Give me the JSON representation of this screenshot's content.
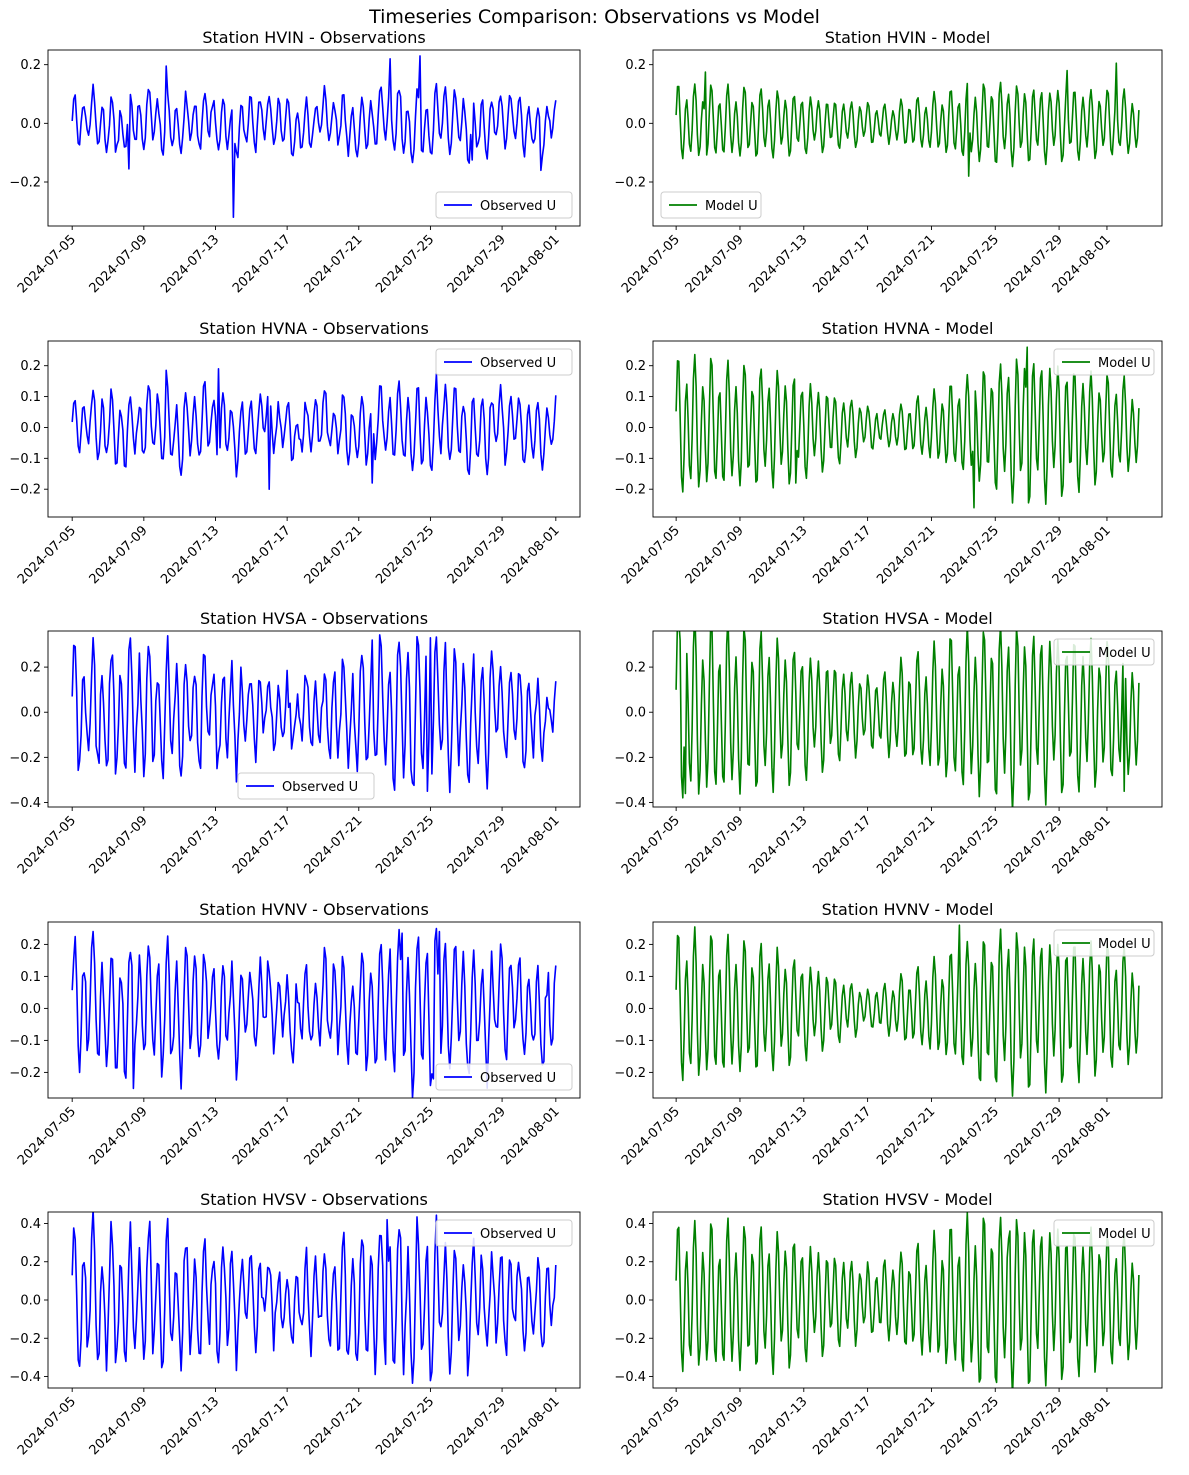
{
  "figure": {
    "suptitle": "Timeseries Comparison: Observations vs Model",
    "colors": {
      "observations": "#0000ff",
      "model": "#008000",
      "axis": "#000000"
    }
  },
  "chart_data": [
    {
      "type": "line",
      "title": "Station HVIN - Observations",
      "series": [
        {
          "name": "Observed U",
          "color": "#0000ff"
        }
      ],
      "legend": "lower-right",
      "x_range": [
        "2024-07-05",
        "2024-08-01"
      ],
      "data_x_range": [
        "2024-07-05",
        "2024-08-01"
      ],
      "x_ticks": [
        "2024-07-05",
        "2024-07-09",
        "2024-07-13",
        "2024-07-17",
        "2024-07-21",
        "2024-07-25",
        "2024-07-29",
        "2024-08-01"
      ],
      "ylim": [
        -0.35,
        0.25
      ],
      "y_ticks": [
        -0.2,
        0.0,
        0.2
      ],
      "amplitude": 0.08,
      "envelope": [
        [
          0,
          0.9
        ],
        [
          0.2,
          1.1
        ],
        [
          0.5,
          0.85
        ],
        [
          0.72,
          1.3
        ],
        [
          1,
          0.85
        ]
      ],
      "extremes": [
        [
          0.332,
          -0.32
        ],
        [
          0.117,
          -0.155
        ],
        [
          0.193,
          0.195
        ],
        [
          0.656,
          0.22
        ],
        [
          0.72,
          0.23
        ],
        [
          0.826,
          -0.125
        ],
        [
          0.97,
          -0.16
        ]
      ]
    },
    {
      "type": "line",
      "title": "Station HVIN - Model",
      "series": [
        {
          "name": "Model U",
          "color": "#008000"
        }
      ],
      "legend": "lower-left",
      "x_range": [
        "2024-07-05",
        "2024-08-01"
      ],
      "data_x_range": [
        "2024-07-05",
        "2024-08-03"
      ],
      "x_ticks": [
        "2024-07-05",
        "2024-07-09",
        "2024-07-13",
        "2024-07-17",
        "2024-07-21",
        "2024-07-25",
        "2024-07-29",
        "2024-08-01"
      ],
      "ylim": [
        -0.35,
        0.25
      ],
      "y_ticks": [
        -0.2,
        0.0,
        0.2
      ],
      "amplitude": 0.1,
      "envelope": [
        [
          0,
          1.1
        ],
        [
          0.2,
          1.0
        ],
        [
          0.45,
          0.55
        ],
        [
          0.68,
          1.2
        ],
        [
          1,
          0.9
        ]
      ],
      "extremes": [
        [
          0.062,
          0.175
        ],
        [
          0.633,
          -0.18
        ],
        [
          0.844,
          0.18
        ],
        [
          0.951,
          0.205
        ]
      ]
    },
    {
      "type": "line",
      "title": "Station HVNA - Observations",
      "series": [
        {
          "name": "Observed U",
          "color": "#0000ff"
        }
      ],
      "legend": "upper-right",
      "x_range": [
        "2024-07-05",
        "2024-08-01"
      ],
      "data_x_range": [
        "2024-07-05",
        "2024-08-01"
      ],
      "x_ticks": [
        "2024-07-05",
        "2024-07-09",
        "2024-07-13",
        "2024-07-17",
        "2024-07-21",
        "2024-07-25",
        "2024-07-29",
        "2024-08-01"
      ],
      "ylim": [
        -0.29,
        0.28
      ],
      "y_ticks": [
        -0.2,
        -0.1,
        0.0,
        0.1,
        0.2
      ],
      "amplitude": 0.1,
      "envelope": [
        [
          0,
          0.9
        ],
        [
          0.2,
          1.1
        ],
        [
          0.48,
          0.7
        ],
        [
          0.72,
          1.2
        ],
        [
          1,
          0.9
        ]
      ],
      "extremes": [
        [
          0.193,
          0.185
        ],
        [
          0.304,
          0.19
        ],
        [
          0.408,
          -0.2
        ],
        [
          0.62,
          -0.18
        ]
      ]
    },
    {
      "type": "line",
      "title": "Station HVNA - Model",
      "series": [
        {
          "name": "Model U",
          "color": "#008000"
        }
      ],
      "legend": "upper-right",
      "x_range": [
        "2024-07-05",
        "2024-08-01"
      ],
      "data_x_range": [
        "2024-07-05",
        "2024-08-03"
      ],
      "x_ticks": [
        "2024-07-05",
        "2024-07-09",
        "2024-07-13",
        "2024-07-17",
        "2024-07-21",
        "2024-07-25",
        "2024-07-29",
        "2024-08-01"
      ],
      "ylim": [
        -0.29,
        0.28
      ],
      "y_ticks": [
        -0.2,
        -0.1,
        0.0,
        0.1,
        0.2
      ],
      "amplitude": 0.15,
      "envelope": [
        [
          0,
          1.3
        ],
        [
          0.25,
          1.0
        ],
        [
          0.45,
          0.3
        ],
        [
          0.6,
          0.8
        ],
        [
          0.75,
          1.4
        ],
        [
          1,
          0.8
        ]
      ],
      "extremes": [
        [
          0.26,
          -0.18
        ],
        [
          0.645,
          -0.26
        ],
        [
          0.759,
          0.26
        ]
      ]
    },
    {
      "type": "line",
      "title": "Station HVSA - Observations",
      "series": [
        {
          "name": "Observed U",
          "color": "#0000ff"
        }
      ],
      "legend": "lower-center",
      "x_range": [
        "2024-07-05",
        "2024-08-01"
      ],
      "data_x_range": [
        "2024-07-05",
        "2024-08-01"
      ],
      "x_ticks": [
        "2024-07-05",
        "2024-07-09",
        "2024-07-13",
        "2024-07-17",
        "2024-07-21",
        "2024-07-25",
        "2024-07-29",
        "2024-08-01"
      ],
      "ylim": [
        -0.42,
        0.36
      ],
      "y_ticks": [
        -0.4,
        -0.2,
        0.0,
        0.2
      ],
      "amplitude": 0.25,
      "envelope": [
        [
          0,
          1.0
        ],
        [
          0.2,
          1.05
        ],
        [
          0.45,
          0.45
        ],
        [
          0.6,
          0.9
        ],
        [
          0.72,
          1.3
        ],
        [
          1,
          0.5
        ]
      ],
      "extremes": [
        [
          0.62,
          0.32
        ],
        [
          0.734,
          -0.35
        ],
        [
          0.74,
          0.33
        ]
      ]
    },
    {
      "type": "line",
      "title": "Station HVSA - Model",
      "series": [
        {
          "name": "Model U",
          "color": "#008000"
        }
      ],
      "legend": "upper-right",
      "x_range": [
        "2024-07-05",
        "2024-08-01"
      ],
      "data_x_range": [
        "2024-07-05",
        "2024-08-03"
      ],
      "x_ticks": [
        "2024-07-05",
        "2024-07-09",
        "2024-07-13",
        "2024-07-17",
        "2024-07-21",
        "2024-07-25",
        "2024-07-29",
        "2024-08-01"
      ],
      "ylim": [
        -0.42,
        0.36
      ],
      "y_ticks": [
        -0.4,
        -0.2,
        0.0,
        0.2
      ],
      "amplitude": 0.3,
      "envelope": [
        [
          0,
          1.2
        ],
        [
          0.2,
          1.0
        ],
        [
          0.42,
          0.45
        ],
        [
          0.6,
          0.95
        ],
        [
          0.72,
          1.15
        ],
        [
          1,
          0.8
        ]
      ],
      "extremes": [
        [
          0.019,
          -0.36
        ],
        [
          0.01,
          0.32
        ],
        [
          0.969,
          -0.35
        ]
      ]
    },
    {
      "type": "line",
      "title": "Station HVNV - Observations",
      "series": [
        {
          "name": "Observed U",
          "color": "#0000ff"
        }
      ],
      "legend": "lower-right",
      "x_range": [
        "2024-07-05",
        "2024-08-01"
      ],
      "data_x_range": [
        "2024-07-05",
        "2024-08-01"
      ],
      "x_ticks": [
        "2024-07-05",
        "2024-07-09",
        "2024-07-13",
        "2024-07-17",
        "2024-07-21",
        "2024-07-25",
        "2024-07-29",
        "2024-08-01"
      ],
      "ylim": [
        -0.28,
        0.27
      ],
      "y_ticks": [
        -0.2,
        -0.1,
        0.0,
        0.1,
        0.2
      ],
      "amplitude": 0.16,
      "envelope": [
        [
          0,
          1.0
        ],
        [
          0.2,
          1.1
        ],
        [
          0.45,
          0.6
        ],
        [
          0.6,
          1.0
        ],
        [
          0.72,
          1.3
        ],
        [
          1,
          0.7
        ]
      ],
      "extremes": [
        [
          0.128,
          -0.25
        ],
        [
          0.682,
          0.235
        ],
        [
          0.758,
          0.24
        ],
        [
          0.746,
          -0.22
        ]
      ]
    },
    {
      "type": "line",
      "title": "Station HVNV - Model",
      "series": [
        {
          "name": "Model U",
          "color": "#008000"
        }
      ],
      "legend": "upper-right",
      "x_range": [
        "2024-07-05",
        "2024-08-01"
      ],
      "data_x_range": [
        "2024-07-05",
        "2024-08-03"
      ],
      "x_ticks": [
        "2024-07-05",
        "2024-07-09",
        "2024-07-13",
        "2024-07-17",
        "2024-07-21",
        "2024-07-25",
        "2024-07-29",
        "2024-08-01"
      ],
      "ylim": [
        -0.28,
        0.27
      ],
      "y_ticks": [
        -0.2,
        -0.1,
        0.0,
        0.1,
        0.2
      ],
      "amplitude": 0.17,
      "envelope": [
        [
          0,
          1.2
        ],
        [
          0.2,
          1.0
        ],
        [
          0.42,
          0.3
        ],
        [
          0.6,
          0.9
        ],
        [
          0.72,
          1.3
        ],
        [
          1,
          0.9
        ]
      ],
      "extremes": [
        [
          0.612,
          0.26
        ],
        [
          0.658,
          -0.225
        ]
      ]
    },
    {
      "type": "line",
      "title": "Station HVSV - Observations",
      "series": [
        {
          "name": "Observed U",
          "color": "#0000ff"
        }
      ],
      "legend": "upper-right",
      "x_range": [
        "2024-07-05",
        "2024-08-01"
      ],
      "data_x_range": [
        "2024-07-05",
        "2024-08-01"
      ],
      "x_ticks": [
        "2024-07-05",
        "2024-07-09",
        "2024-07-13",
        "2024-07-17",
        "2024-07-21",
        "2024-07-25",
        "2024-07-29",
        "2024-08-01"
      ],
      "ylim": [
        -0.46,
        0.46
      ],
      "y_ticks": [
        -0.4,
        -0.2,
        0.0,
        0.2,
        0.4
      ],
      "amplitude": 0.3,
      "envelope": [
        [
          0,
          1.0
        ],
        [
          0.2,
          1.05
        ],
        [
          0.45,
          0.5
        ],
        [
          0.68,
          1.2
        ],
        [
          1,
          0.5
        ]
      ],
      "extremes": [
        [
          0.079,
          0.41
        ],
        [
          0.652,
          0.42
        ],
        [
          0.684,
          -0.39
        ]
      ]
    },
    {
      "type": "line",
      "title": "Station HVSV - Model",
      "series": [
        {
          "name": "Model U",
          "color": "#008000"
        }
      ],
      "legend": "upper-right",
      "x_range": [
        "2024-07-05",
        "2024-08-01"
      ],
      "data_x_range": [
        "2024-07-05",
        "2024-08-03"
      ],
      "x_ticks": [
        "2024-07-05",
        "2024-07-09",
        "2024-07-13",
        "2024-07-17",
        "2024-07-21",
        "2024-07-25",
        "2024-07-29",
        "2024-08-01"
      ],
      "ylim": [
        -0.46,
        0.46
      ],
      "y_ticks": [
        -0.4,
        -0.2,
        0.0,
        0.2,
        0.4
      ],
      "amplitude": 0.34,
      "envelope": [
        [
          0,
          1.0
        ],
        [
          0.2,
          0.95
        ],
        [
          0.43,
          0.45
        ],
        [
          0.62,
          1.05
        ],
        [
          0.73,
          1.15
        ],
        [
          1,
          0.8
        ]
      ],
      "extremes": [
        [
          0.658,
          -0.41
        ],
        [
          0.72,
          0.36
        ]
      ]
    }
  ]
}
